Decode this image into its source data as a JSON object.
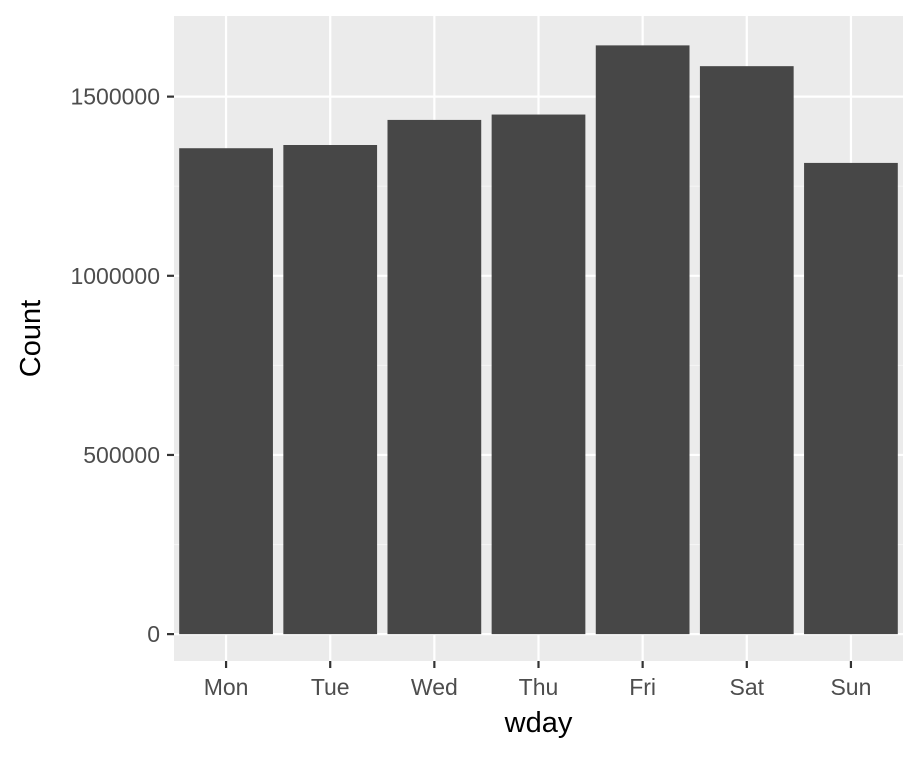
{
  "chart_data": {
    "type": "bar",
    "title": "",
    "xlabel": "wday",
    "ylabel": "Count",
    "categories": [
      "Mon",
      "Tue",
      "Wed",
      "Thu",
      "Fri",
      "Sat",
      "Sun"
    ],
    "values": [
      1356000,
      1365000,
      1435000,
      1450000,
      1643000,
      1585000,
      1315000
    ],
    "ylim": [
      -75000,
      1725000
    ],
    "yticks": [
      0,
      500000,
      1000000,
      1500000
    ],
    "ytick_labels": [
      "0",
      "500000",
      "1000000",
      "1500000"
    ],
    "grid": true,
    "legend": "none",
    "colors": {
      "panel_background": "#ebebeb",
      "grid_major": "#ffffff",
      "grid_minor": "#f5f5f5",
      "bar_fill": "#474747",
      "tick_text": "#4d4d4d",
      "tick_mark": "#333333",
      "axis_title": "#000000"
    }
  }
}
